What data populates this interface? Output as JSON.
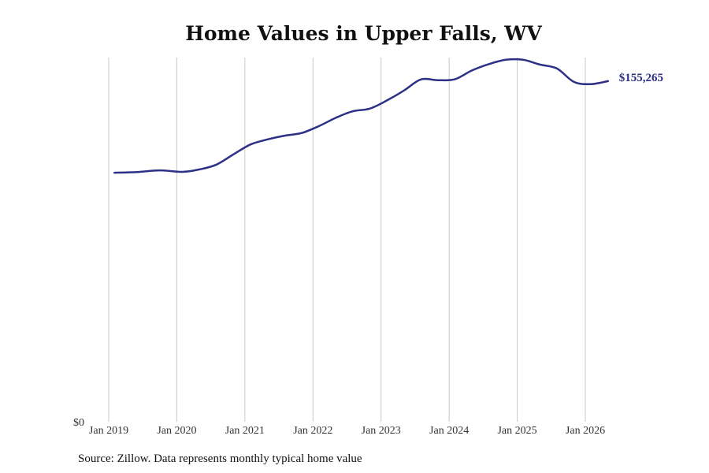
{
  "chart_data": {
    "type": "line",
    "title": "Home Values in Upper Falls, WV",
    "xlabel": "",
    "ylabel": "",
    "x_ticks": [
      "Jan 2019",
      "Jan 2020",
      "Jan 2021",
      "Jan 2022",
      "Jan 2023",
      "Jan 2024",
      "Jan 2025",
      "Jan 2026"
    ],
    "y_ticks": [
      {
        "value": 0,
        "label": "$0"
      }
    ],
    "ylim": [
      0,
      166000
    ],
    "grid": "vertical",
    "legend": "none",
    "end_label": "$155,265",
    "colors": {
      "line": "#2e2f86",
      "grid": "#c8c8c8",
      "text": "#333333"
    },
    "series": [
      {
        "x": [
          "2019-02",
          "2019-06",
          "2019-10",
          "2020-02",
          "2020-05",
          "2020-08",
          "2020-11",
          "2021-02",
          "2021-05",
          "2021-08",
          "2021-11",
          "2022-02",
          "2022-05",
          "2022-08",
          "2022-11",
          "2023-02",
          "2023-05",
          "2023-08",
          "2023-11",
          "2024-02",
          "2024-05",
          "2024-08",
          "2024-11",
          "2025-02",
          "2025-05",
          "2025-08",
          "2025-11",
          "2026-02",
          "2026-05"
        ],
        "y": [
          113500,
          113800,
          114600,
          113900,
          115000,
          117200,
          121900,
          126400,
          128700,
          130400,
          131600,
          134700,
          138500,
          141500,
          142700,
          146400,
          150900,
          156000,
          155700,
          156100,
          160100,
          163000,
          165000,
          165000,
          162800,
          161000,
          154900,
          153900,
          155265
        ]
      }
    ]
  },
  "source": "Source: Zillow. Data represents monthly typical home value"
}
